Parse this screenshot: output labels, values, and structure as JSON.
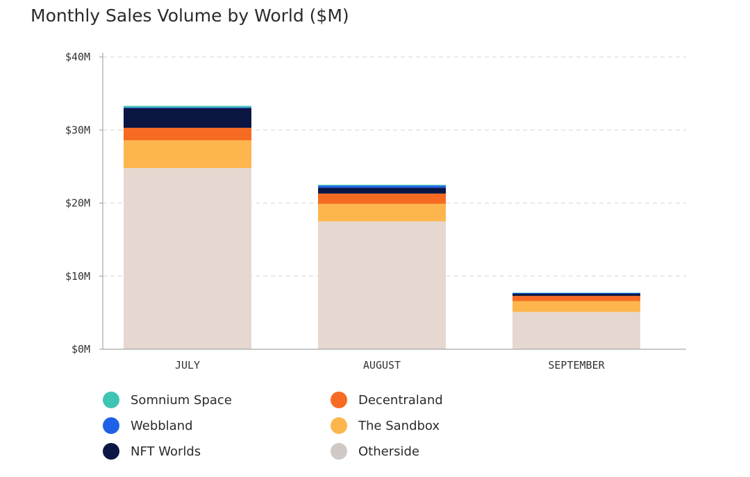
{
  "chart_data": {
    "type": "bar",
    "stacked": true,
    "title": "Monthly Sales Volume by World ($M)",
    "categories": [
      "JULY",
      "AUGUST",
      "SEPTEMBER"
    ],
    "ylim": [
      0,
      40
    ],
    "yticks": [
      0,
      10,
      20,
      30,
      40
    ],
    "ytick_labels": [
      "$0M",
      "$10M",
      "$20M",
      "$30M",
      "$40M"
    ],
    "grid": true,
    "legend_position": "bottom",
    "series": [
      {
        "name": "Otherside",
        "color": "#e6d7d0",
        "values": [
          24.8,
          17.5,
          5.1
        ]
      },
      {
        "name": "The Sandbox",
        "color": "#fdb64d",
        "values": [
          3.8,
          2.4,
          1.5
        ]
      },
      {
        "name": "Decentraland",
        "color": "#f76a22",
        "values": [
          1.7,
          1.4,
          0.7
        ]
      },
      {
        "name": "NFT Worlds",
        "color": "#0b1643",
        "values": [
          2.7,
          0.8,
          0.3
        ]
      },
      {
        "name": "Webbland",
        "color": "#1d62e6",
        "values": [
          0.1,
          0.3,
          0.1
        ]
      },
      {
        "name": "Somnium Space",
        "color": "#3ec4b3",
        "values": [
          0.2,
          0.1,
          0.05
        ]
      }
    ]
  },
  "legend": {
    "items": [
      {
        "label": "Somnium Space",
        "color": "#3ec4b3"
      },
      {
        "label": "Webbland",
        "color": "#1d62e6"
      },
      {
        "label": "NFT Worlds",
        "color": "#0b1643"
      },
      {
        "label": "Decentraland",
        "color": "#f76a22"
      },
      {
        "label": "The Sandbox",
        "color": "#fdb64d"
      },
      {
        "label": "Otherside",
        "color": "#cfc9c6"
      }
    ]
  }
}
